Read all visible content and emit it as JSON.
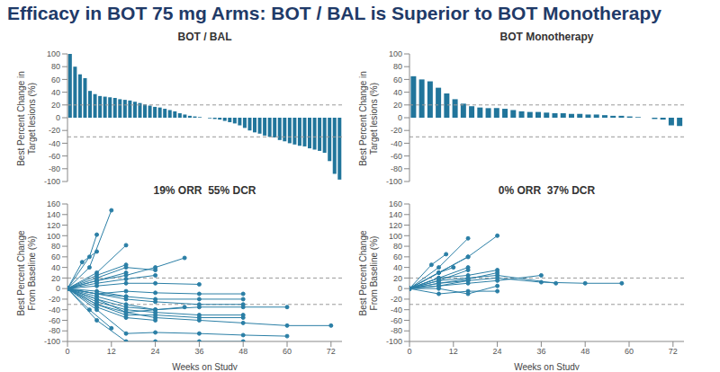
{
  "title": "Efficacy in BOT 75 mg Arms: BOT / BAL is Superior to BOT Monotherapy",
  "chart_data": [
    {
      "type": "bar",
      "title": "BOT / BAL",
      "ylabel": "Best Percent Change in Target lesions (%)",
      "tick_labels": "y",
      "color": "#21759b",
      "ylim": [
        -100,
        100
      ],
      "yticks": [
        -100,
        -80,
        -60,
        -40,
        -20,
        0,
        20,
        40,
        60,
        80,
        100
      ],
      "reference_lines": [
        20,
        -30
      ],
      "values": [
        100,
        80,
        68,
        62,
        42,
        37,
        34,
        33,
        32,
        31,
        29,
        28,
        27,
        25,
        23,
        21,
        19,
        17,
        16,
        14,
        12,
        10,
        7,
        5,
        3,
        2,
        1,
        0,
        -1,
        -2,
        -3,
        -5,
        -7,
        -9,
        -12,
        -16,
        -20,
        -23,
        -25,
        -28,
        -30,
        -31,
        -35,
        -37,
        -40,
        -42,
        -44,
        -45,
        -48,
        -50,
        -52,
        -55,
        -68,
        -88,
        -97
      ]
    },
    {
      "type": "bar",
      "title": "BOT Monotherapy",
      "ylabel": "Best Percent Change in Target lesions (%)",
      "tick_labels": "y",
      "color": "#21759b",
      "ylim": [
        -100,
        100
      ],
      "yticks": [
        -100,
        -80,
        -60,
        -40,
        -20,
        0,
        20,
        40,
        60,
        80,
        100
      ],
      "reference_lines": [
        20,
        -30
      ],
      "values": [
        65,
        60,
        57,
        47,
        38,
        29,
        22,
        18,
        16,
        15,
        15,
        14,
        12,
        10,
        9,
        9,
        8,
        7,
        7,
        6,
        6,
        5,
        5,
        4,
        3,
        3,
        2,
        1,
        0,
        -2,
        -3,
        -12,
        -13
      ]
    },
    {
      "type": "line",
      "title": "19% ORR  55% DCR",
      "ylabel": "Best Percent Change From Baseline (%)",
      "xlabel": "Weeks on Study",
      "color": "#2b7fa6",
      "marker": "circle",
      "xlim": [
        0,
        75
      ],
      "xticks": [
        0,
        12,
        24,
        36,
        48,
        60,
        72
      ],
      "ylim": [
        -100,
        160
      ],
      "yticks": [
        -100,
        -80,
        -60,
        -40,
        -20,
        0,
        20,
        40,
        60,
        80,
        100,
        120,
        140,
        160
      ],
      "reference_lines": [
        20,
        -30
      ],
      "series": [
        {
          "x": [
            0,
            6,
            12
          ],
          "values": [
            0,
            40,
            148
          ]
        },
        {
          "x": [
            0,
            6,
            8
          ],
          "values": [
            0,
            60,
            102
          ]
        },
        {
          "x": [
            0,
            8,
            16
          ],
          "values": [
            0,
            30,
            82
          ]
        },
        {
          "x": [
            0,
            8,
            16,
            24
          ],
          "values": [
            0,
            20,
            40,
            35
          ]
        },
        {
          "x": [
            0,
            8,
            16,
            24,
            32
          ],
          "values": [
            0,
            15,
            25,
            40,
            58
          ]
        },
        {
          "x": [
            0,
            8,
            16
          ],
          "values": [
            0,
            25,
            45
          ]
        },
        {
          "x": [
            0,
            8,
            16,
            24,
            36,
            48
          ],
          "values": [
            0,
            -10,
            -20,
            -25,
            -30,
            -30
          ]
        },
        {
          "x": [
            0,
            8,
            16,
            24,
            36,
            48,
            60
          ],
          "values": [
            0,
            -20,
            -35,
            -40,
            -35,
            -35,
            -35
          ]
        },
        {
          "x": [
            0,
            8,
            16,
            24,
            36,
            48,
            60,
            72
          ],
          "values": [
            0,
            -30,
            -45,
            -55,
            -60,
            -65,
            -70,
            -70
          ]
        },
        {
          "x": [
            0,
            8,
            16,
            24,
            36,
            48
          ],
          "values": [
            0,
            -30,
            -50,
            -50,
            -55,
            -55
          ]
        },
        {
          "x": [
            0,
            8,
            16,
            24,
            36,
            48,
            60
          ],
          "values": [
            0,
            -40,
            -85,
            -83,
            -85,
            -88,
            -90
          ]
        },
        {
          "x": [
            0,
            8,
            16,
            24,
            36,
            48
          ],
          "values": [
            0,
            -60,
            -100,
            -100,
            -100,
            -100
          ]
        },
        {
          "x": [
            0,
            6,
            12
          ],
          "values": [
            0,
            -40,
            -75
          ]
        },
        {
          "x": [
            0,
            8,
            16,
            24
          ],
          "values": [
            0,
            -20,
            -45,
            -40
          ]
        },
        {
          "x": [
            0,
            8,
            16,
            24,
            36,
            48
          ],
          "values": [
            0,
            -10,
            -15,
            -20,
            -20,
            -20
          ]
        },
        {
          "x": [
            0,
            8,
            16
          ],
          "values": [
            0,
            -5,
            -15
          ]
        },
        {
          "x": [
            0,
            8,
            16,
            24,
            36
          ],
          "values": [
            0,
            5,
            10,
            10,
            8
          ]
        },
        {
          "x": [
            0,
            8,
            16,
            24
          ],
          "values": [
            0,
            10,
            18,
            25
          ]
        },
        {
          "x": [
            0,
            8,
            16,
            24,
            32
          ],
          "values": [
            0,
            -15,
            -30,
            -40,
            -35
          ]
        },
        {
          "x": [
            0,
            8,
            16,
            24,
            36,
            48
          ],
          "values": [
            0,
            -25,
            -40,
            -45,
            -50,
            -50
          ]
        },
        {
          "x": [
            0,
            8,
            16
          ],
          "values": [
            0,
            15,
            30
          ]
        },
        {
          "x": [
            0,
            4,
            8
          ],
          "values": [
            0,
            50,
            70
          ]
        },
        {
          "x": [
            0,
            8,
            16,
            24,
            36,
            48
          ],
          "values": [
            0,
            -10,
            -5,
            -8,
            -10,
            -10
          ]
        },
        {
          "x": [
            0,
            8,
            16,
            24
          ],
          "values": [
            0,
            -35,
            -55,
            -60
          ]
        }
      ]
    },
    {
      "type": "line",
      "title": "0% ORR  37% DCR",
      "ylabel": "Best Percent Change From Baseline (%)",
      "xlabel": "Weeks on Study",
      "color": "#2b7fa6",
      "marker": "circle",
      "xlim": [
        0,
        75
      ],
      "xticks": [
        0,
        12,
        24,
        36,
        48,
        60,
        72
      ],
      "ylim": [
        -100,
        160
      ],
      "yticks": [
        -100,
        -80,
        -60,
        -40,
        -20,
        0,
        20,
        40,
        60,
        80,
        100,
        120,
        140,
        160
      ],
      "reference_lines": [
        20,
        -30
      ],
      "series": [
        {
          "x": [
            0,
            8,
            16,
            24
          ],
          "values": [
            0,
            30,
            60,
            100
          ]
        },
        {
          "x": [
            0,
            8,
            16
          ],
          "values": [
            0,
            40,
            95
          ]
        },
        {
          "x": [
            0,
            6,
            10
          ],
          "values": [
            0,
            45,
            65
          ]
        },
        {
          "x": [
            0,
            8,
            16
          ],
          "values": [
            0,
            30,
            60
          ]
        },
        {
          "x": [
            0,
            8,
            16,
            24,
            36,
            48,
            58
          ],
          "values": [
            0,
            10,
            15,
            20,
            12,
            10,
            10
          ]
        },
        {
          "x": [
            0,
            8,
            16,
            24,
            40
          ],
          "values": [
            0,
            15,
            20,
            25,
            10
          ]
        },
        {
          "x": [
            0,
            8,
            16,
            24,
            36
          ],
          "values": [
            0,
            5,
            10,
            15,
            25
          ]
        },
        {
          "x": [
            0,
            8,
            16
          ],
          "values": [
            0,
            20,
            40
          ]
        },
        {
          "x": [
            0,
            8,
            12
          ],
          "values": [
            0,
            30,
            40
          ]
        },
        {
          "x": [
            0,
            8,
            16,
            24
          ],
          "values": [
            0,
            10,
            18,
            30
          ]
        },
        {
          "x": [
            0,
            8,
            16,
            24
          ],
          "values": [
            0,
            0,
            -10,
            5
          ]
        },
        {
          "x": [
            0,
            8,
            16
          ],
          "values": [
            0,
            5,
            15
          ]
        },
        {
          "x": [
            0,
            8,
            16,
            24
          ],
          "values": [
            0,
            -10,
            -5,
            -5
          ]
        },
        {
          "x": [
            0,
            8,
            16,
            24
          ],
          "values": [
            0,
            20,
            25,
            35
          ]
        },
        {
          "x": [
            0,
            8,
            16
          ],
          "values": [
            0,
            15,
            35
          ]
        },
        {
          "x": [
            0,
            8
          ],
          "values": [
            0,
            20
          ]
        }
      ]
    }
  ]
}
